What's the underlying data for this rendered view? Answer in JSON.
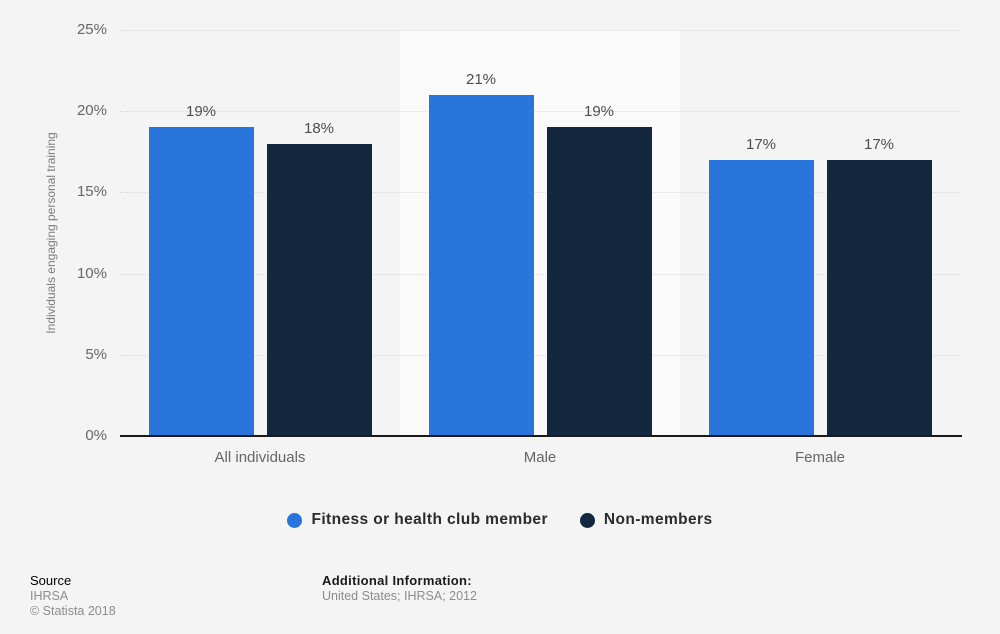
{
  "background": {
    "page": "#f4f4f4",
    "band": "#fafafa"
  },
  "axis_color": "#1a1a1a",
  "grid_color": "#d9d9d9",
  "chart_data": {
    "type": "bar",
    "categories": [
      "All individuals",
      "Male",
      "Female"
    ],
    "series": [
      {
        "name": "Fitness or health club member",
        "color": "#2a75dc",
        "values": [
          19,
          21,
          17
        ]
      },
      {
        "name": "Non-members",
        "color": "#13283f",
        "values": [
          18,
          19,
          17
        ]
      }
    ],
    "value_suffix": "%",
    "ylabel": "Individuals engaging personal training",
    "ylim": [
      0,
      25
    ],
    "yticks": [
      0,
      5,
      10,
      15,
      20,
      25
    ],
    "ytick_suffix": "%",
    "grid": "horizontal-dotted",
    "legend_position": "bottom",
    "highlight_band_category": "Male"
  },
  "footer": {
    "source_label": "Source",
    "source_lines": [
      "IHRSA",
      "© Statista 2018"
    ],
    "additional_label": "Additional Information:",
    "additional_lines": [
      "United States; IHRSA; 2012"
    ]
  }
}
